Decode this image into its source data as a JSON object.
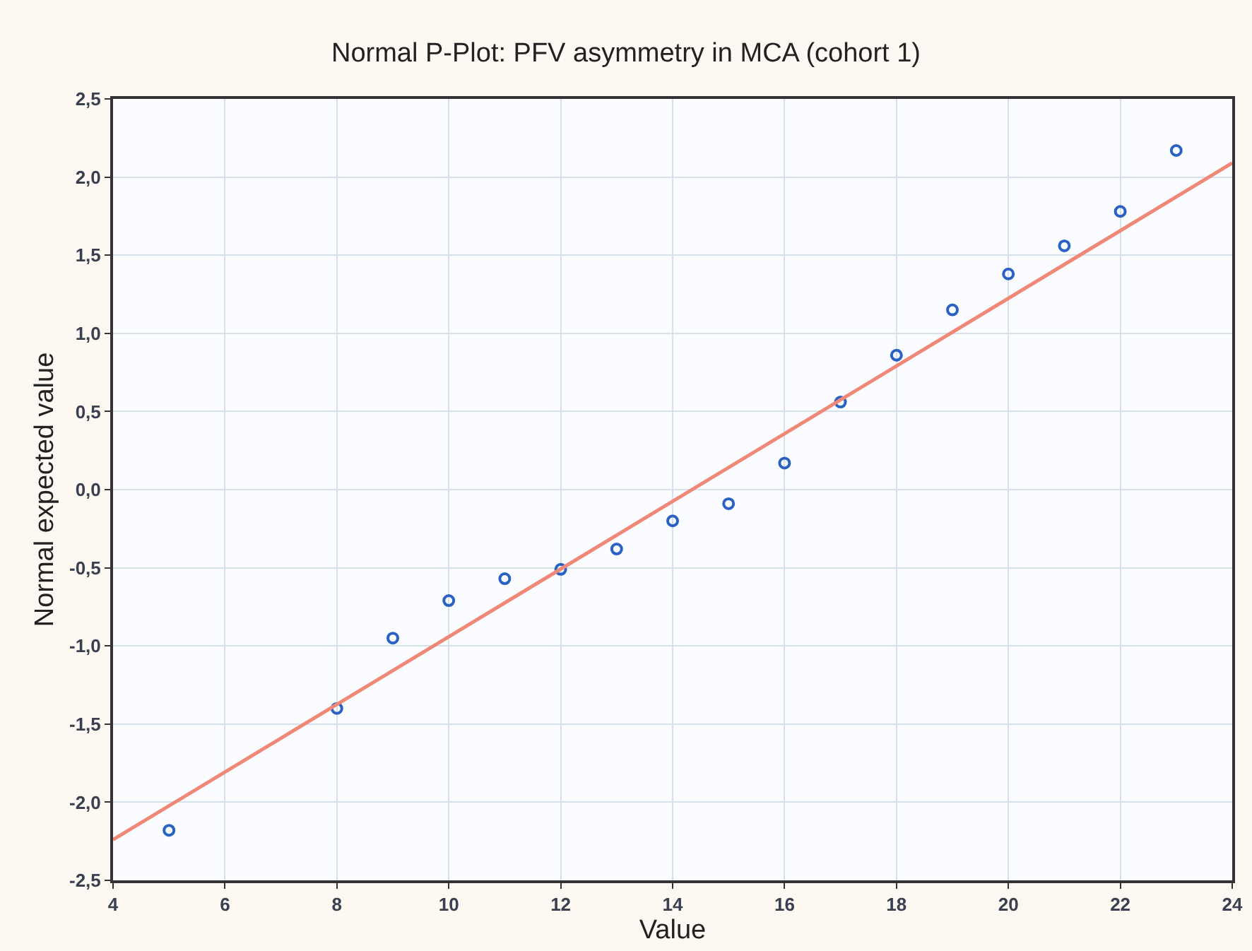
{
  "chart_data": {
    "type": "scatter",
    "title": "Normal P-Plot: PFV asymmetry in MCA (cohort 1)",
    "xlabel": "Value",
    "ylabel": "Normal expected value",
    "marker": "circle",
    "grid": true,
    "xlim": [
      4,
      24
    ],
    "xticks": [
      4,
      6,
      8,
      10,
      12,
      14,
      16,
      18,
      20,
      22,
      24
    ],
    "ylim": [
      -2.5,
      2.5
    ],
    "yticks": [
      {
        "value": -2.5,
        "label": "-2,5"
      },
      {
        "value": -2,
        "label": "-2,0"
      },
      {
        "value": -1.5,
        "label": "-1,5"
      },
      {
        "value": -1,
        "label": "-1,0"
      },
      {
        "value": -0.5,
        "label": "-0,5"
      },
      {
        "value": 0,
        "label": "0,0"
      },
      {
        "value": 0.5,
        "label": "0,5"
      },
      {
        "value": 1,
        "label": "1,0"
      },
      {
        "value": 1.5,
        "label": "1,5"
      },
      {
        "value": 2,
        "label": "2,0"
      },
      {
        "value": 2.5,
        "label": "2,5"
      }
    ],
    "series": [
      {
        "color": "#2a62c4",
        "x": [
          5,
          8,
          9,
          10,
          11,
          12,
          13,
          14,
          15,
          16,
          17,
          18,
          19,
          20,
          21,
          22,
          23
        ],
        "values": [
          -2.18,
          -1.4,
          -0.95,
          -0.71,
          -0.57,
          -0.51,
          -0.38,
          -0.2,
          -0.09,
          0.17,
          0.56,
          0.86,
          1.15,
          1.38,
          1.56,
          1.78,
          2.17
        ]
      },
      {
        "type": "line",
        "color": "#f08878",
        "marker": "none",
        "x": [
          4,
          24
        ],
        "values": [
          -2.24,
          2.09
        ]
      }
    ]
  }
}
